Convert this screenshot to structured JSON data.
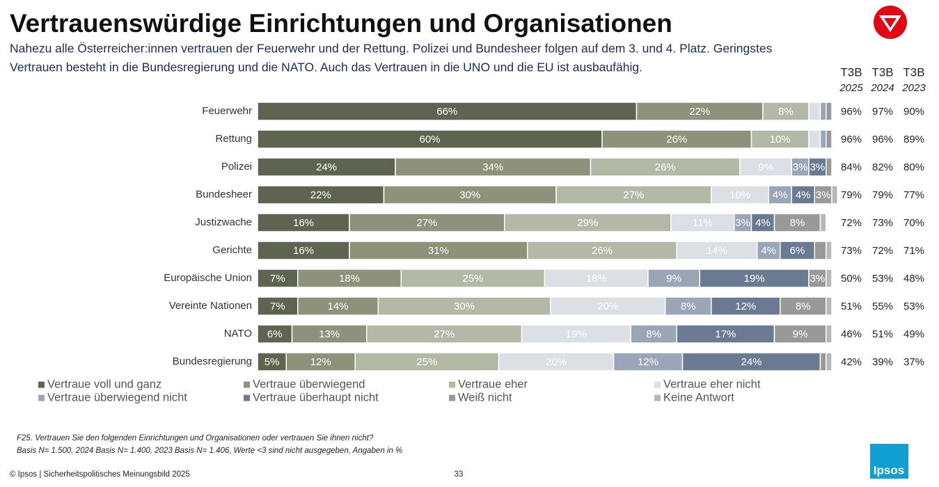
{
  "header": {
    "title": "Vertrauenswürdige Einrichtungen und Organisationen",
    "subtitle_lines": [
      "Nahezu alle Österreicher:innen vertrauen der Feuerwehr und der Rettung. Polizei und Bundesheer folgen auf dem 3. und 4. Platz. Geringstes",
      "Vertrauen besteht in die Bundesregierung und die NATO. Auch das Vertrauen in die UNO und die EU ist ausbaufähig."
    ]
  },
  "chart_data": {
    "type": "stacked-bar-horizontal",
    "xlim": [
      0,
      100
    ],
    "categories": [
      "Feuerwehr",
      "Rettung",
      "Polizei",
      "Bundesheer",
      "Justizwache",
      "Gerichte",
      "Europäische Union",
      "Vereinte Nationen",
      "NATO",
      "Bundesregierung"
    ],
    "series": [
      {
        "name": "Vertraue voll und ganz",
        "color": "#5f6450",
        "values": [
          66,
          60,
          24,
          22,
          16,
          16,
          7,
          7,
          6,
          5
        ],
        "value_labels": [
          "66%",
          "60%",
          "24%",
          "22%",
          "16%",
          "16%",
          "7%",
          "7%",
          "6%",
          "5%"
        ]
      },
      {
        "name": "Vertraue überwiegend",
        "color": "#8e927b",
        "values": [
          22,
          26,
          34,
          30,
          27,
          31,
          18,
          14,
          13,
          12
        ],
        "value_labels": [
          "22%",
          "26%",
          "34%",
          "30%",
          "27%",
          "31%",
          "18%",
          "14%",
          "13%",
          "12%"
        ]
      },
      {
        "name": "Vertraue eher",
        "color": "#b4b8a6",
        "values": [
          8,
          10,
          26,
          27,
          29,
          26,
          25,
          30,
          27,
          25
        ],
        "value_labels": [
          "8%",
          "10%",
          "26%",
          "27%",
          "29%",
          "26%",
          "25%",
          "30%",
          "27%",
          "25%"
        ]
      },
      {
        "name": "Vertraue eher nicht",
        "color": "#dcdfe3",
        "values": [
          2,
          2,
          9,
          10,
          11,
          14,
          18,
          20,
          19,
          20
        ],
        "value_labels": [
          null,
          null,
          "9%",
          "10%",
          "11%",
          "14%",
          "18%",
          "20%",
          "19%",
          "20%"
        ]
      },
      {
        "name": "Vertraue überwiegend nicht",
        "color": "#9ba5b8",
        "values": [
          1,
          1,
          3,
          4,
          3,
          4,
          9,
          8,
          8,
          12
        ],
        "value_labels": [
          null,
          null,
          "3%",
          "4%",
          "3%",
          "4%",
          "9%",
          "8%",
          "8%",
          "12%"
        ]
      },
      {
        "name": "Vertraue überhaupt nicht",
        "color": "#6b7a93",
        "values": [
          0,
          0,
          3,
          4,
          4,
          6,
          19,
          12,
          17,
          24
        ],
        "value_labels": [
          null,
          null,
          "3%",
          "4%",
          "4%",
          "6%",
          "19%",
          "12%",
          "17%",
          "24%"
        ]
      },
      {
        "name": "Weiß nicht",
        "color": "#999999",
        "values": [
          1,
          1,
          1,
          3,
          8,
          2,
          3,
          8,
          9,
          1
        ],
        "value_labels": [
          null,
          null,
          null,
          "3%",
          "8%",
          null,
          "3%",
          "8%",
          "9%",
          null
        ]
      },
      {
        "name": "Keine Antwort",
        "color": "#b7b7b7",
        "values": [
          0,
          0,
          0,
          1,
          1,
          1,
          1,
          1,
          1,
          1
        ],
        "value_labels": [
          null,
          null,
          null,
          null,
          null,
          null,
          null,
          null,
          null,
          null
        ]
      }
    ]
  },
  "t3b": {
    "columns": [
      {
        "header": "T3B",
        "year": "2025",
        "values": [
          "96%",
          "96%",
          "84%",
          "79%",
          "72%",
          "73%",
          "50%",
          "51%",
          "46%",
          "42%"
        ]
      },
      {
        "header": "T3B",
        "year": "2024",
        "values": [
          "97%",
          "96%",
          "82%",
          "79%",
          "73%",
          "72%",
          "53%",
          "55%",
          "51%",
          "39%"
        ]
      },
      {
        "header": "T3B",
        "year": "2023",
        "values": [
          "90%",
          "89%",
          "80%",
          "77%",
          "70%",
          "71%",
          "48%",
          "53%",
          "49%",
          "37%"
        ]
      }
    ]
  },
  "notes": [
    "F25. Vertrauen Sie den folgenden Einrichtungen und Organisationen oder vertrauen Sie ihnen nicht?",
    "Basis N= 1.500, 2024 Basis N= 1.400, 2023 Basis N= 1.406, Werte <3 sind nicht ausgegeben, Angaben in %"
  ],
  "footer": {
    "source": "© Ipsos | Sicherheitspolitisches Meinungsbild 2025",
    "page": "33",
    "logo": "Ipsos"
  }
}
